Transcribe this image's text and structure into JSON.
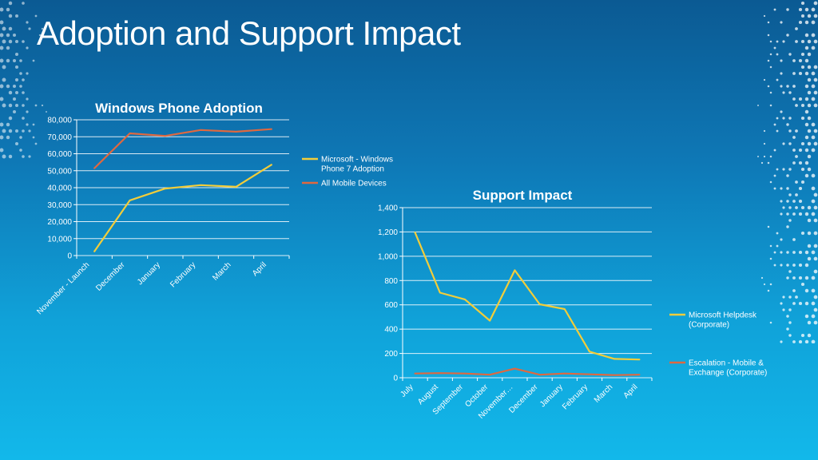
{
  "slide": {
    "title": "Adoption and Support Impact"
  },
  "colors": {
    "yellow": "#f2cd3a",
    "orange": "#e0683f",
    "grid": "#ffffff",
    "text": "#ffffff"
  },
  "chart_data": [
    {
      "type": "line",
      "title": "Windows Phone Adoption",
      "categories": [
        "November - Launch",
        "December",
        "January",
        "February",
        "March",
        "April"
      ],
      "ylim": [
        0,
        80000
      ],
      "yticks": [
        "0",
        "10,000",
        "20,000",
        "30,000",
        "40,000",
        "50,000",
        "60,000",
        "70,000",
        "80,000"
      ],
      "grid": true,
      "legend_position": "right",
      "series": [
        {
          "name": "Microsoft - Windows Phone 7 Adoption",
          "legend_lines": [
            "Microsoft - Windows",
            "Phone 7 Adoption"
          ],
          "color": "#f2cd3a",
          "values": [
            2500,
            32500,
            39500,
            41500,
            40500,
            53500
          ]
        },
        {
          "name": "All Mobile Devices",
          "legend_lines": [
            "All Mobile Devices"
          ],
          "color": "#e0683f",
          "values": [
            51500,
            72000,
            70500,
            74000,
            73000,
            74500
          ]
        }
      ]
    },
    {
      "type": "line",
      "title": "Support Impact",
      "categories": [
        "July",
        "August",
        "September",
        "October",
        "November…",
        "December",
        "January",
        "February",
        "March",
        "April"
      ],
      "ylim": [
        0,
        1400
      ],
      "yticks": [
        "0",
        "200",
        "400",
        "600",
        "800",
        "1,000",
        "1,200",
        "1,400"
      ],
      "grid": true,
      "legend_position": "right",
      "series": [
        {
          "name": "Microsoft Helpdesk (Corporate)",
          "legend_lines": [
            "Microsoft Helpdesk",
            "(Corporate)"
          ],
          "color": "#f2cd3a",
          "values": [
            1195,
            700,
            645,
            470,
            885,
            605,
            565,
            215,
            155,
            150
          ]
        },
        {
          "name": "Escalation - Mobile & Exchange (Corporate)",
          "legend_lines": [
            "Escalation - Mobile &",
            "Exchange (Corporate)"
          ],
          "color": "#e0683f",
          "values": [
            35,
            38,
            35,
            25,
            75,
            25,
            35,
            28,
            22,
            25
          ]
        }
      ]
    }
  ]
}
